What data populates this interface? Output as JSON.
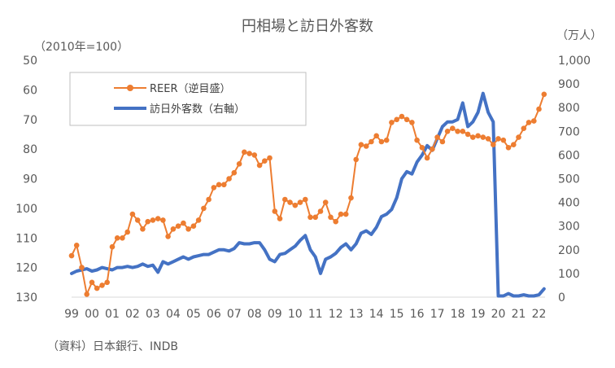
{
  "chart_data": {
    "type": "line",
    "title": "円相場と訪日外客数",
    "left_unit": "（2010年=100）",
    "right_unit": "（万人）",
    "source": "（資料）日本銀行、INDB",
    "x_ticks": [
      "99",
      "00",
      "01",
      "02",
      "03",
      "04",
      "05",
      "06",
      "07",
      "08",
      "09",
      "10",
      "11",
      "12",
      "13",
      "14",
      "15",
      "16",
      "17",
      "18",
      "19",
      "20",
      "21",
      "22"
    ],
    "left_axis": {
      "min": 50,
      "max": 130,
      "inverted": true,
      "ticks": [
        "50",
        "60",
        "70",
        "80",
        "90",
        "100",
        "110",
        "120",
        "130"
      ]
    },
    "right_axis": {
      "min": 0,
      "max": 1000,
      "ticks": [
        "0",
        "100",
        "200",
        "300",
        "400",
        "500",
        "600",
        "700",
        "800",
        "900",
        "1,000"
      ]
    },
    "colors": {
      "reer": "#ED7D31",
      "visitors": "#4472C4",
      "axis": "#D9D9D9",
      "text": "#595959"
    },
    "legend": {
      "position": "top-left"
    },
    "series": [
      {
        "name": "REER（逆目盛）",
        "axis": "left",
        "x": [
          1999.0,
          1999.25,
          1999.5,
          1999.75,
          2000.0,
          2000.25,
          2000.5,
          2000.75,
          2001.0,
          2001.25,
          2001.5,
          2001.75,
          2002.0,
          2002.25,
          2002.5,
          2002.75,
          2003.0,
          2003.25,
          2003.5,
          2003.75,
          2004.0,
          2004.25,
          2004.5,
          2004.75,
          2005.0,
          2005.25,
          2005.5,
          2005.75,
          2006.0,
          2006.25,
          2006.5,
          2006.75,
          2007.0,
          2007.25,
          2007.5,
          2007.75,
          2008.0,
          2008.25,
          2008.5,
          2008.75,
          2009.0,
          2009.25,
          2009.5,
          2009.75,
          2010.0,
          2010.25,
          2010.5,
          2010.75,
          2011.0,
          2011.25,
          2011.5,
          2011.75,
          2012.0,
          2012.25,
          2012.5,
          2012.75,
          2013.0,
          2013.25,
          2013.5,
          2013.75,
          2014.0,
          2014.25,
          2014.5,
          2014.75,
          2015.0,
          2015.25,
          2015.5,
          2015.75,
          2016.0,
          2016.25,
          2016.5,
          2016.75,
          2017.0,
          2017.25,
          2017.5,
          2017.75,
          2018.0,
          2018.25,
          2018.5,
          2018.75,
          2019.0,
          2019.25,
          2019.5,
          2019.75,
          2020.0,
          2020.25,
          2020.5,
          2020.75,
          2021.0,
          2021.25,
          2021.5,
          2021.75,
          2022.0,
          2022.25
        ],
        "values": [
          116,
          112.5,
          120,
          129,
          125,
          127,
          126,
          125,
          113,
          110,
          110,
          108,
          102,
          104,
          107,
          104.5,
          104,
          103.5,
          104,
          109.5,
          107,
          106,
          105,
          107,
          106,
          104,
          100,
          97,
          93,
          92,
          92,
          90,
          88,
          85,
          81,
          81.5,
          82,
          85.5,
          84,
          83,
          101,
          103.5,
          97,
          98,
          99,
          98,
          97,
          103,
          103,
          101,
          98,
          103,
          104.5,
          102,
          102,
          96.5,
          83.5,
          78.5,
          79,
          77.5,
          75.5,
          77.5,
          77,
          71,
          70,
          69,
          70,
          71,
          77,
          79.5,
          83,
          80,
          76,
          77.5,
          74,
          73,
          74,
          74,
          75,
          76,
          75.5,
          76,
          76.5,
          78.5,
          76.5,
          77,
          79.5,
          78.5,
          76,
          73,
          71,
          70.5,
          66.5,
          61.5
        ]
      },
      {
        "name": "訪日外客数（右軸）",
        "axis": "right",
        "x": [
          1999.0,
          1999.25,
          1999.5,
          1999.75,
          2000.0,
          2000.25,
          2000.5,
          2000.75,
          2001.0,
          2001.25,
          2001.5,
          2001.75,
          2002.0,
          2002.25,
          2002.5,
          2002.75,
          2003.0,
          2003.25,
          2003.5,
          2003.75,
          2004.0,
          2004.25,
          2004.5,
          2004.75,
          2005.0,
          2005.25,
          2005.5,
          2005.75,
          2006.0,
          2006.25,
          2006.5,
          2006.75,
          2007.0,
          2007.25,
          2007.5,
          2007.75,
          2008.0,
          2008.25,
          2008.5,
          2008.75,
          2009.0,
          2009.25,
          2009.5,
          2009.75,
          2010.0,
          2010.25,
          2010.5,
          2010.75,
          2011.0,
          2011.25,
          2011.5,
          2011.75,
          2012.0,
          2012.25,
          2012.5,
          2012.75,
          2013.0,
          2013.25,
          2013.5,
          2013.75,
          2014.0,
          2014.25,
          2014.5,
          2014.75,
          2015.0,
          2015.25,
          2015.5,
          2015.75,
          2016.0,
          2016.25,
          2016.5,
          2016.75,
          2017.0,
          2017.25,
          2017.5,
          2017.75,
          2018.0,
          2018.25,
          2018.5,
          2018.75,
          2019.0,
          2019.25,
          2019.5,
          2019.75,
          2020.0,
          2020.25,
          2020.5,
          2020.75,
          2021.0,
          2021.25,
          2021.5,
          2021.75,
          2022.0,
          2022.25
        ],
        "values": [
          100,
          110,
          115,
          120,
          110,
          115,
          125,
          120,
          115,
          125,
          125,
          130,
          125,
          130,
          140,
          130,
          135,
          105,
          150,
          140,
          150,
          160,
          170,
          160,
          170,
          175,
          180,
          180,
          190,
          200,
          200,
          195,
          205,
          230,
          225,
          225,
          230,
          230,
          200,
          160,
          150,
          180,
          185,
          200,
          215,
          240,
          260,
          200,
          170,
          100,
          160,
          170,
          185,
          210,
          225,
          200,
          225,
          270,
          280,
          265,
          295,
          340,
          350,
          370,
          420,
          500,
          530,
          520,
          570,
          600,
          640,
          620,
          670,
          720,
          740,
          740,
          750,
          820,
          720,
          740,
          780,
          860,
          780,
          740,
          5,
          5,
          15,
          5,
          5,
          10,
          5,
          5,
          10,
          35
        ]
      }
    ]
  }
}
